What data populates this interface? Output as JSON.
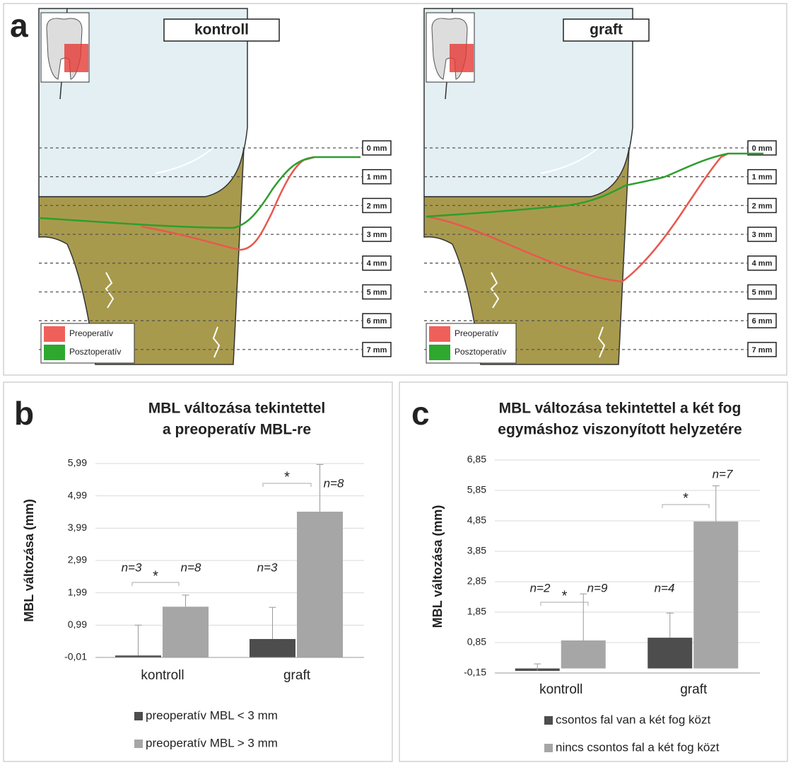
{
  "panel_a": {
    "label": "a",
    "diagrams": [
      {
        "title": "kontroll"
      },
      {
        "title": "graft"
      }
    ],
    "depth_labels": [
      "0 mm",
      "1 mm",
      "2 mm",
      "3 mm",
      "4 mm",
      "5 mm",
      "6 mm",
      "7 mm"
    ],
    "legend": [
      "Preoperatív",
      "Posztoperatív"
    ]
  },
  "chart_data": [
    {
      "type": "bar",
      "label": "b",
      "title": [
        "MBL változása tekintettel",
        "a preoperatív MBL-re"
      ],
      "y_label": "MBL változása (mm)",
      "categories": [
        "kontroll",
        "graft"
      ],
      "ylim": [
        -0.01,
        5.99
      ],
      "yticks": [
        {
          "value": -0.01,
          "label": "-0,01"
        },
        {
          "value": 0.99,
          "label": "0,99"
        },
        {
          "value": 1.99,
          "label": "1,99"
        },
        {
          "value": 2.99,
          "label": "2,99"
        },
        {
          "value": 3.99,
          "label": "3,99"
        },
        {
          "value": 4.99,
          "label": "4,99"
        },
        {
          "value": 5.99,
          "label": "5,99"
        }
      ],
      "grid": true,
      "series": [
        {
          "name": "preoperatív MBL < 3 mm",
          "color": "#4d4d4d",
          "values": [
            0.05,
            0.56
          ],
          "errors": [
            0.94,
            0.98
          ],
          "n_labels": [
            "n=3",
            "n=3"
          ]
        },
        {
          "name": "preoperatív MBL > 3 mm",
          "color": "#a6a6a6",
          "values": [
            1.56,
            4.5
          ],
          "errors": [
            0.36,
            1.46
          ],
          "n_labels": [
            "n=8",
            "n=8"
          ]
        }
      ],
      "significance": [
        "*",
        "*"
      ]
    },
    {
      "type": "bar",
      "label": "c",
      "title": [
        "MBL változása tekintettel a két fog",
        "egymáshoz viszonyított helyzetére"
      ],
      "y_label": "MBL változása (mm)",
      "categories": [
        "kontroll",
        "graft"
      ],
      "ylim": [
        -0.15,
        6.85
      ],
      "yticks": [
        {
          "value": -0.15,
          "label": "-0,15"
        },
        {
          "value": 0.85,
          "label": "0,85"
        },
        {
          "value": 1.85,
          "label": "1,85"
        },
        {
          "value": 2.85,
          "label": "2,85"
        },
        {
          "value": 3.85,
          "label": "3,85"
        },
        {
          "value": 4.85,
          "label": "4,85"
        },
        {
          "value": 5.85,
          "label": "5,85"
        },
        {
          "value": 6.85,
          "label": "6,85"
        }
      ],
      "grid": true,
      "series": [
        {
          "name": "csontos fal van a két fog közt",
          "color": "#4d4d4d",
          "values": [
            -0.08,
            1.01
          ],
          "errors": [
            0.23,
            0.81
          ],
          "n_labels": [
            "n=2",
            "n=4"
          ]
        },
        {
          "name": "nincs csontos fal a két fog közt",
          "color": "#a6a6a6",
          "values": [
            0.92,
            4.83
          ],
          "errors": [
            1.53,
            1.17
          ],
          "n_labels": [
            "n=9",
            "n=7"
          ]
        }
      ],
      "significance": [
        "*",
        "*"
      ]
    }
  ]
}
